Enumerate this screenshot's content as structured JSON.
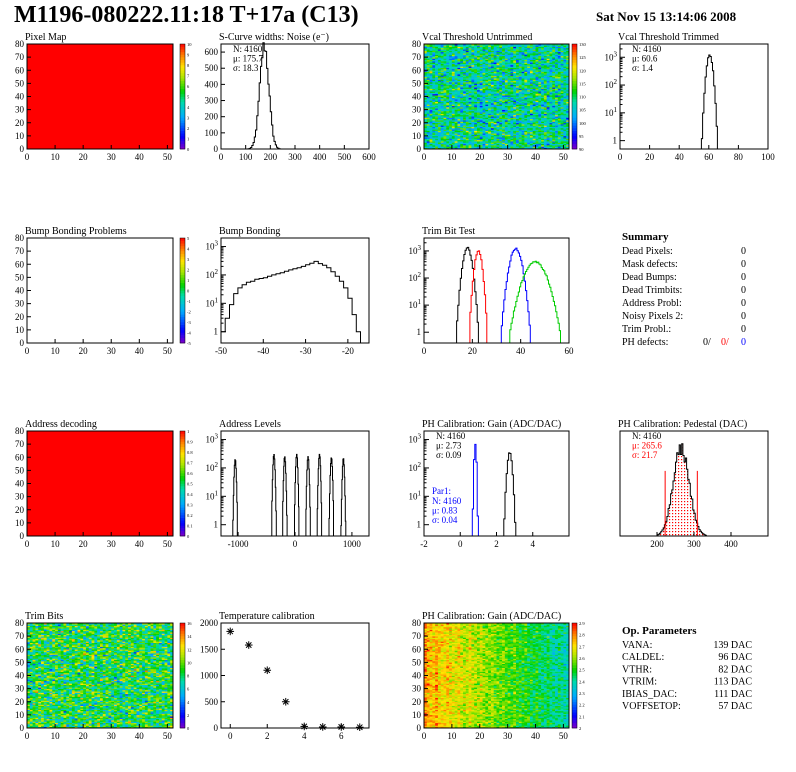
{
  "header": {
    "title": "M1196-080222.11:18 T+17a (C13)",
    "date": "Sat Nov 15 13:14:06 2008"
  },
  "chart_data": [
    {
      "id": "pixel-map",
      "type": "heatmap",
      "title": "Pixel Map",
      "xlim": [
        0,
        52
      ],
      "ylim": [
        0,
        80
      ],
      "xticks": [
        "0",
        "10",
        "20",
        "30",
        "40",
        "50"
      ],
      "yticks": [
        "0",
        "10",
        "20",
        "30",
        "40",
        "50",
        "60",
        "70",
        "80"
      ],
      "z_range": [
        0,
        10
      ],
      "palette_ticks": [
        "0",
        "1",
        "2",
        "3",
        "4",
        "5",
        "6",
        "7",
        "8",
        "9",
        "10"
      ],
      "fill": "uniform",
      "fill_color": "#ff0000"
    },
    {
      "id": "scurve-noise",
      "type": "line",
      "title": "S-Curve widths: Noise (e⁻)",
      "xlim": [
        0,
        600
      ],
      "ylim": [
        0,
        650
      ],
      "xticks": [
        "0",
        "100",
        "200",
        "300",
        "400",
        "500",
        "600"
      ],
      "yticks": [
        "0",
        "100",
        "200",
        "300",
        "400",
        "500",
        "600"
      ],
      "stats": {
        "n": "N: 4160",
        "mean": "μ: 175.7",
        "sigma": "σ: 18.3"
      },
      "series": [
        {
          "shape": "gaussian",
          "mean": 175.7,
          "sigma": 18.3,
          "peak": 640,
          "color": "#000000"
        }
      ]
    },
    {
      "id": "vcal-untrimmed",
      "type": "heatmap",
      "title": "Vcal Threshold Untrimmed",
      "xlim": [
        0,
        52
      ],
      "ylim": [
        0,
        80
      ],
      "xticks": [
        "0",
        "10",
        "20",
        "30",
        "40",
        "50"
      ],
      "yticks": [
        "0",
        "10",
        "20",
        "30",
        "40",
        "50",
        "60",
        "70",
        "80"
      ],
      "z_range": [
        90,
        130
      ],
      "palette_ticks": [
        "90",
        "95",
        "100",
        "105",
        "110",
        "115",
        "120",
        "125",
        "130"
      ],
      "fill": "noise",
      "z_mean": 108,
      "z_spread": 5
    },
    {
      "id": "vcal-trimmed",
      "type": "line",
      "title": "Vcal Threshold Trimmed",
      "log_y": true,
      "xlim": [
        0,
        100
      ],
      "ylim_log": [
        0.5,
        3000
      ],
      "xticks": [
        "0",
        "20",
        "40",
        "60",
        "80",
        "100"
      ],
      "yticks_log": [
        [
          "1",
          "0"
        ],
        [
          "10",
          "1"
        ],
        [
          "10",
          "2"
        ],
        [
          "10",
          "3"
        ]
      ],
      "stats": {
        "n": "N: 4160",
        "mean": "μ: 60.6",
        "sigma": "σ: 1.4"
      },
      "series": [
        {
          "shape": "gaussian",
          "mean": 60.6,
          "sigma": 1.4,
          "peak": 1200,
          "color": "#000000"
        }
      ]
    },
    {
      "id": "bump-bonding-problems",
      "type": "heatmap",
      "title": "Bump Bonding Problems",
      "xlim": [
        0,
        52
      ],
      "ylim": [
        0,
        80
      ],
      "xticks": [
        "0",
        "10",
        "20",
        "30",
        "40",
        "50"
      ],
      "yticks": [
        "0",
        "10",
        "20",
        "30",
        "40",
        "50",
        "60",
        "70",
        "80"
      ],
      "z_range": [
        -5,
        5
      ],
      "palette_ticks": [
        "-5",
        "-4",
        "-3",
        "-2",
        "-1",
        "0",
        "1",
        "2",
        "3",
        "4",
        "5"
      ],
      "fill": "empty"
    },
    {
      "id": "bump-bonding",
      "type": "line",
      "title": "Bump Bonding",
      "log_y": true,
      "xlim": [
        -50,
        -15
      ],
      "ylim_log": [
        0.4,
        2000
      ],
      "xticks": [
        "-50",
        "-40",
        "-30",
        "-20"
      ],
      "yticks_log": [
        [
          "1",
          "0"
        ],
        [
          "10",
          "1"
        ],
        [
          "10",
          "2"
        ],
        [
          "10",
          "3"
        ]
      ],
      "series": [
        {
          "shape": "points",
          "color": "#000000",
          "x": [
            -50,
            -49,
            -48,
            -47,
            -46,
            -45,
            -44,
            -43,
            -42,
            -41,
            -40,
            -39,
            -38,
            -37,
            -36,
            -35,
            -34,
            -33,
            -32,
            -31,
            -30,
            -29,
            -28,
            -27,
            -26,
            -25,
            -24,
            -23,
            -22,
            -21,
            -20,
            -19,
            -18
          ],
          "y": [
            1,
            3,
            9,
            22,
            35,
            45,
            55,
            60,
            70,
            75,
            80,
            90,
            100,
            110,
            120,
            135,
            150,
            165,
            180,
            200,
            230,
            260,
            300,
            250,
            220,
            180,
            130,
            90,
            60,
            35,
            15,
            4,
            1
          ]
        }
      ]
    },
    {
      "id": "trim-bit-test",
      "type": "line",
      "title": "Trim Bit Test",
      "log_y": true,
      "xlim": [
        0,
        60
      ],
      "ylim_log": [
        0.4,
        3000
      ],
      "xticks": [
        "0",
        "20",
        "40",
        "60"
      ],
      "yticks_log": [
        [
          "1",
          "0"
        ],
        [
          "10",
          "1"
        ],
        [
          "10",
          "2"
        ],
        [
          "10",
          "3"
        ]
      ],
      "series": [
        {
          "shape": "gaussian",
          "mean": 18,
          "sigma": 1.2,
          "peak": 1300,
          "color": "#000000"
        },
        {
          "shape": "gaussian",
          "mean": 22.5,
          "sigma": 1.0,
          "peak": 1000,
          "color": "#ff0000"
        },
        {
          "shape": "gaussian",
          "mean": 38,
          "sigma": 1.6,
          "peak": 1200,
          "color": "#0000ff"
        },
        {
          "shape": "gaussian",
          "mean": 46,
          "sigma": 3.0,
          "peak": 400,
          "color": "#00cc00"
        }
      ]
    },
    {
      "id": "address-decoding",
      "type": "heatmap",
      "title": "Address decoding",
      "xlim": [
        0,
        52
      ],
      "ylim": [
        0,
        80
      ],
      "xticks": [
        "0",
        "10",
        "20",
        "30",
        "40",
        "50"
      ],
      "yticks": [
        "0",
        "10",
        "20",
        "30",
        "40",
        "50",
        "60",
        "70",
        "80"
      ],
      "z_range": [
        0,
        1
      ],
      "palette_ticks": [
        "0",
        "0.1",
        "0.2",
        "0.3",
        "0.4",
        "0.5",
        "0.6",
        "0.7",
        "0.8",
        "0.9",
        "1"
      ],
      "fill": "uniform",
      "fill_color": "#ff0000"
    },
    {
      "id": "address-levels",
      "type": "line",
      "title": "Address Levels",
      "log_y": true,
      "xlim": [
        -1300,
        1300
      ],
      "ylim_log": [
        0.4,
        2000
      ],
      "xticks": [
        "-1000",
        "0",
        "1000"
      ],
      "yticks_log": [
        [
          "1",
          "0"
        ],
        [
          "10",
          "1"
        ],
        [
          "10",
          "2"
        ],
        [
          "10",
          "3"
        ]
      ],
      "series": [
        {
          "shape": "multi_gaussian",
          "color": "#000000",
          "means": [
            -1050,
            -370,
            -180,
            30,
            230,
            430,
            640,
            850
          ],
          "sigma": 12,
          "peaks": [
            200,
            300,
            250,
            300,
            250,
            300,
            230,
            220
          ]
        }
      ]
    },
    {
      "id": "ph-gain-hist",
      "type": "line",
      "title": "PH Calibration: Gain (ADC/DAC)",
      "log_y": true,
      "xlim": [
        -2,
        6
      ],
      "ylim_log": [
        0.4,
        2000
      ],
      "xticks": [
        "-2",
        "0",
        "2",
        "4"
      ],
      "yticks_log": [
        [
          "1",
          "0"
        ],
        [
          "10",
          "1"
        ],
        [
          "10",
          "2"
        ],
        [
          "10",
          "3"
        ]
      ],
      "stats": {
        "n": "N: 4160",
        "mean": "μ: 2.73",
        "sigma": "σ: 0.09"
      },
      "stats2": {
        "title": "Par1:",
        "n": "N: 4160",
        "mean": "μ: 0.83",
        "sigma": "σ: 0.04",
        "color": "#0000ff"
      },
      "series": [
        {
          "shape": "gaussian",
          "mean": 2.73,
          "sigma": 0.09,
          "peak": 350,
          "color": "#000000"
        },
        {
          "shape": "gaussian",
          "mean": 0.83,
          "sigma": 0.04,
          "peak": 700,
          "color": "#0000ff"
        }
      ]
    },
    {
      "id": "ph-pedestal",
      "type": "line",
      "title": "PH Calibration: Pedestal (DAC)",
      "xlim": [
        100,
        500
      ],
      "ylim": [
        0,
        120
      ],
      "xticks": [
        "200",
        "300",
        "400"
      ],
      "stats": {
        "n": "N: 4160",
        "mean": "μ: 265.6",
        "sigma": "σ: 21.7"
      },
      "stats_colors": [
        "#000000",
        "#ff0000",
        "#ff0000"
      ],
      "series": [
        {
          "shape": "gaussian",
          "mean": 265.6,
          "sigma": 21.7,
          "peak": 100,
          "color": "#000000",
          "hatch": "#ff0000"
        }
      ],
      "markers": [
        222,
        309
      ]
    },
    {
      "id": "trim-bits",
      "type": "heatmap",
      "title": "Trim Bits",
      "xlim": [
        0,
        52
      ],
      "ylim": [
        0,
        80
      ],
      "xticks": [
        "0",
        "10",
        "20",
        "30",
        "40",
        "50"
      ],
      "yticks": [
        "0",
        "10",
        "20",
        "30",
        "40",
        "50",
        "60",
        "70",
        "80"
      ],
      "z_range": [
        0,
        16
      ],
      "palette_ticks": [
        "0",
        "2",
        "4",
        "6",
        "8",
        "10",
        "12",
        "14",
        "16"
      ],
      "fill": "noise",
      "z_mean": 8.5,
      "z_spread": 2.2
    },
    {
      "id": "temperature-calibration",
      "type": "scatter",
      "title": "Temperature calibration",
      "xlim": [
        -0.5,
        7.5
      ],
      "ylim": [
        0,
        2000
      ],
      "xticks": [
        "0",
        "2",
        "4",
        "6"
      ],
      "yticks": [
        "0",
        "500",
        "1000",
        "1500",
        "2000"
      ],
      "x": [
        0,
        1,
        2,
        3,
        4,
        5,
        6,
        7
      ],
      "y": [
        1840,
        1580,
        1100,
        500,
        30,
        20,
        20,
        15
      ]
    },
    {
      "id": "ph-gain-map",
      "type": "heatmap",
      "title": "PH Calibration: Gain (ADC/DAC)",
      "xlim": [
        0,
        52
      ],
      "ylim": [
        0,
        80
      ],
      "xticks": [
        "0",
        "10",
        "20",
        "30",
        "40",
        "50"
      ],
      "yticks": [
        "0",
        "10",
        "20",
        "30",
        "40",
        "50",
        "60",
        "70",
        "80"
      ],
      "z_range": [
        2,
        2.9
      ],
      "palette_ticks": [
        "2",
        "2.1",
        "2.2",
        "2.3",
        "2.4",
        "2.5",
        "2.6",
        "2.7",
        "2.8",
        "2.9"
      ],
      "fill": "column_gradient",
      "z_left": 2.75,
      "z_right": 2.38,
      "z_spread": 0.06
    }
  ],
  "summary": {
    "title": "Summary",
    "rows": [
      {
        "label": "Dead Pixels:",
        "value": "0"
      },
      {
        "label": "Mask defects:",
        "value": "0"
      },
      {
        "label": "Dead Bumps:",
        "value": "0"
      },
      {
        "label": "Dead Trimbits:",
        "value": "0"
      },
      {
        "label": "Address Probl:",
        "value": "0"
      },
      {
        "label": "Noisy Pixels 2:",
        "value": "0"
      },
      {
        "label": "Trim Probl.:",
        "value": "0"
      }
    ],
    "ph_defects": {
      "label": "PH defects:",
      "v1": "0/",
      "v2": "0/",
      "v3": "0",
      "c1": "#000000",
      "c2": "#ff0000",
      "c3": "#0000ff"
    }
  },
  "op_parameters": {
    "title": "Op. Parameters",
    "rows": [
      {
        "label": "VANA:",
        "value": "139 DAC"
      },
      {
        "label": "CALDEL:",
        "value": "96 DAC"
      },
      {
        "label": "VTHR:",
        "value": "82 DAC"
      },
      {
        "label": "VTRIM:",
        "value": "113 DAC"
      },
      {
        "label": "IBIAS_DAC:",
        "value": "111 DAC"
      },
      {
        "label": "VOFFSETOP:",
        "value": "57 DAC"
      }
    ]
  }
}
